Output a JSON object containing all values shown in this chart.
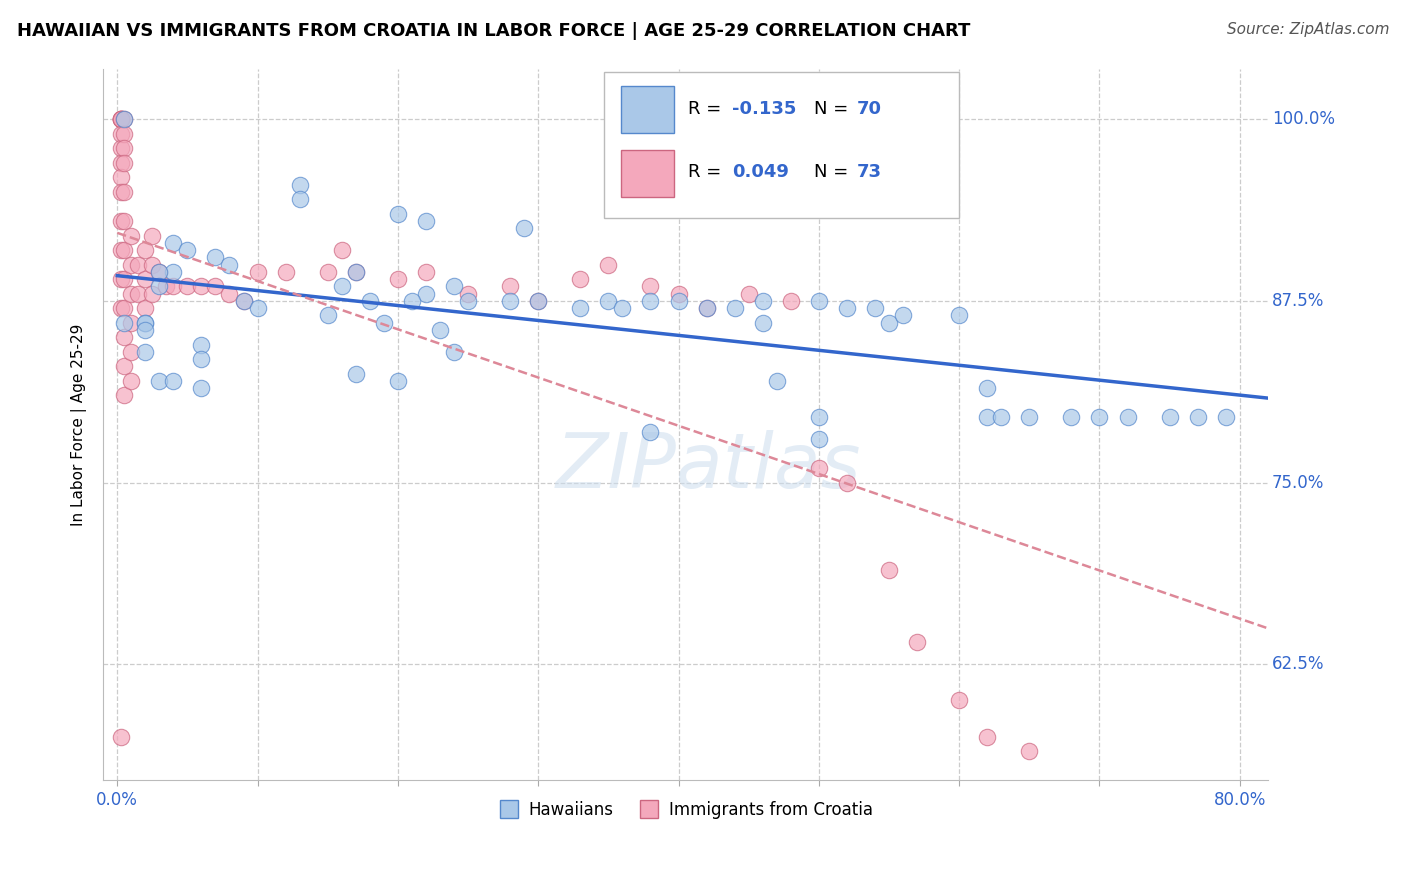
{
  "title": "HAWAIIAN VS IMMIGRANTS FROM CROATIA IN LABOR FORCE | AGE 25-29 CORRELATION CHART",
  "source": "Source: ZipAtlas.com",
  "ylabel": "In Labor Force | Age 25-29",
  "xlim": [
    -0.01,
    0.82
  ],
  "ylim": [
    0.545,
    1.035
  ],
  "ytick_positions": [
    0.625,
    0.75,
    0.875,
    1.0
  ],
  "yticklabels_right": [
    "62.5%",
    "75.0%",
    "87.5%",
    "100.0%"
  ],
  "xtick_positions": [
    0.0,
    0.1,
    0.2,
    0.3,
    0.4,
    0.5,
    0.6,
    0.7,
    0.8
  ],
  "xticklabels": [
    "0.0%",
    "",
    "",
    "",
    "",
    "",
    "",
    "",
    "80.0%"
  ],
  "grid_color": "#cccccc",
  "background_color": "#ffffff",
  "hawaiians_fill": "#aac8e8",
  "hawaii_edge": "#5588cc",
  "croatia_fill": "#f4a8bc",
  "croatia_edge": "#cc6680",
  "trend_blue": "#3366cc",
  "trend_pink": "#dd8898",
  "R_blue": -0.135,
  "N_blue": 70,
  "R_pink": 0.049,
  "N_pink": 73,
  "hawaiians_x": [
    0.005,
    0.37,
    0.13,
    0.13,
    0.2,
    0.22,
    0.29,
    0.04,
    0.05,
    0.07,
    0.08,
    0.04,
    0.03,
    0.03,
    0.17,
    0.16,
    0.24,
    0.22,
    0.18,
    0.09,
    0.1,
    0.21,
    0.25,
    0.3,
    0.35,
    0.38,
    0.4,
    0.36,
    0.44,
    0.46,
    0.46,
    0.5,
    0.42,
    0.52,
    0.54,
    0.55,
    0.56,
    0.28,
    0.33,
    0.47,
    0.2,
    0.17,
    0.03,
    0.04,
    0.06,
    0.06,
    0.06,
    0.62,
    0.5,
    0.38,
    0.5,
    0.15,
    0.19,
    0.23,
    0.24,
    0.02,
    0.02,
    0.02,
    0.02,
    0.6,
    0.62,
    0.63,
    0.65,
    0.68,
    0.7,
    0.72,
    0.75,
    0.77,
    0.79,
    0.005
  ],
  "hawaiians_y": [
    1.0,
    0.975,
    0.955,
    0.945,
    0.935,
    0.93,
    0.925,
    0.915,
    0.91,
    0.905,
    0.9,
    0.895,
    0.895,
    0.885,
    0.895,
    0.885,
    0.885,
    0.88,
    0.875,
    0.875,
    0.87,
    0.875,
    0.875,
    0.875,
    0.875,
    0.875,
    0.875,
    0.87,
    0.87,
    0.875,
    0.86,
    0.875,
    0.87,
    0.87,
    0.87,
    0.86,
    0.865,
    0.875,
    0.87,
    0.82,
    0.82,
    0.825,
    0.82,
    0.82,
    0.845,
    0.835,
    0.815,
    0.795,
    0.795,
    0.785,
    0.78,
    0.865,
    0.86,
    0.855,
    0.84,
    0.86,
    0.86,
    0.855,
    0.84,
    0.865,
    0.815,
    0.795,
    0.795,
    0.795,
    0.795,
    0.795,
    0.795,
    0.795,
    0.795,
    0.86
  ],
  "croatia_x": [
    0.003,
    0.003,
    0.003,
    0.003,
    0.003,
    0.003,
    0.003,
    0.003,
    0.003,
    0.003,
    0.003,
    0.003,
    0.003,
    0.003,
    0.005,
    0.005,
    0.005,
    0.005,
    0.005,
    0.005,
    0.005,
    0.005,
    0.005,
    0.005,
    0.005,
    0.005,
    0.01,
    0.01,
    0.01,
    0.01,
    0.01,
    0.01,
    0.015,
    0.015,
    0.02,
    0.02,
    0.02,
    0.025,
    0.025,
    0.025,
    0.03,
    0.035,
    0.04,
    0.05,
    0.06,
    0.07,
    0.08,
    0.09,
    0.1,
    0.12,
    0.15,
    0.16,
    0.17,
    0.2,
    0.22,
    0.25,
    0.28,
    0.3,
    0.33,
    0.35,
    0.38,
    0.4,
    0.42,
    0.45,
    0.48,
    0.5,
    0.52,
    0.55,
    0.57,
    0.6,
    0.62,
    0.65,
    0.003
  ],
  "croatia_y": [
    1.0,
    1.0,
    1.0,
    1.0,
    1.0,
    0.99,
    0.98,
    0.97,
    0.96,
    0.95,
    0.93,
    0.91,
    0.89,
    0.87,
    1.0,
    0.99,
    0.98,
    0.97,
    0.95,
    0.93,
    0.91,
    0.89,
    0.87,
    0.85,
    0.83,
    0.81,
    0.92,
    0.9,
    0.88,
    0.86,
    0.84,
    0.82,
    0.9,
    0.88,
    0.91,
    0.89,
    0.87,
    0.92,
    0.9,
    0.88,
    0.895,
    0.885,
    0.885,
    0.885,
    0.885,
    0.885,
    0.88,
    0.875,
    0.895,
    0.895,
    0.895,
    0.91,
    0.895,
    0.89,
    0.895,
    0.88,
    0.885,
    0.875,
    0.89,
    0.9,
    0.885,
    0.88,
    0.87,
    0.88,
    0.875,
    0.76,
    0.75,
    0.69,
    0.64,
    0.6,
    0.575,
    0.565,
    0.575
  ]
}
